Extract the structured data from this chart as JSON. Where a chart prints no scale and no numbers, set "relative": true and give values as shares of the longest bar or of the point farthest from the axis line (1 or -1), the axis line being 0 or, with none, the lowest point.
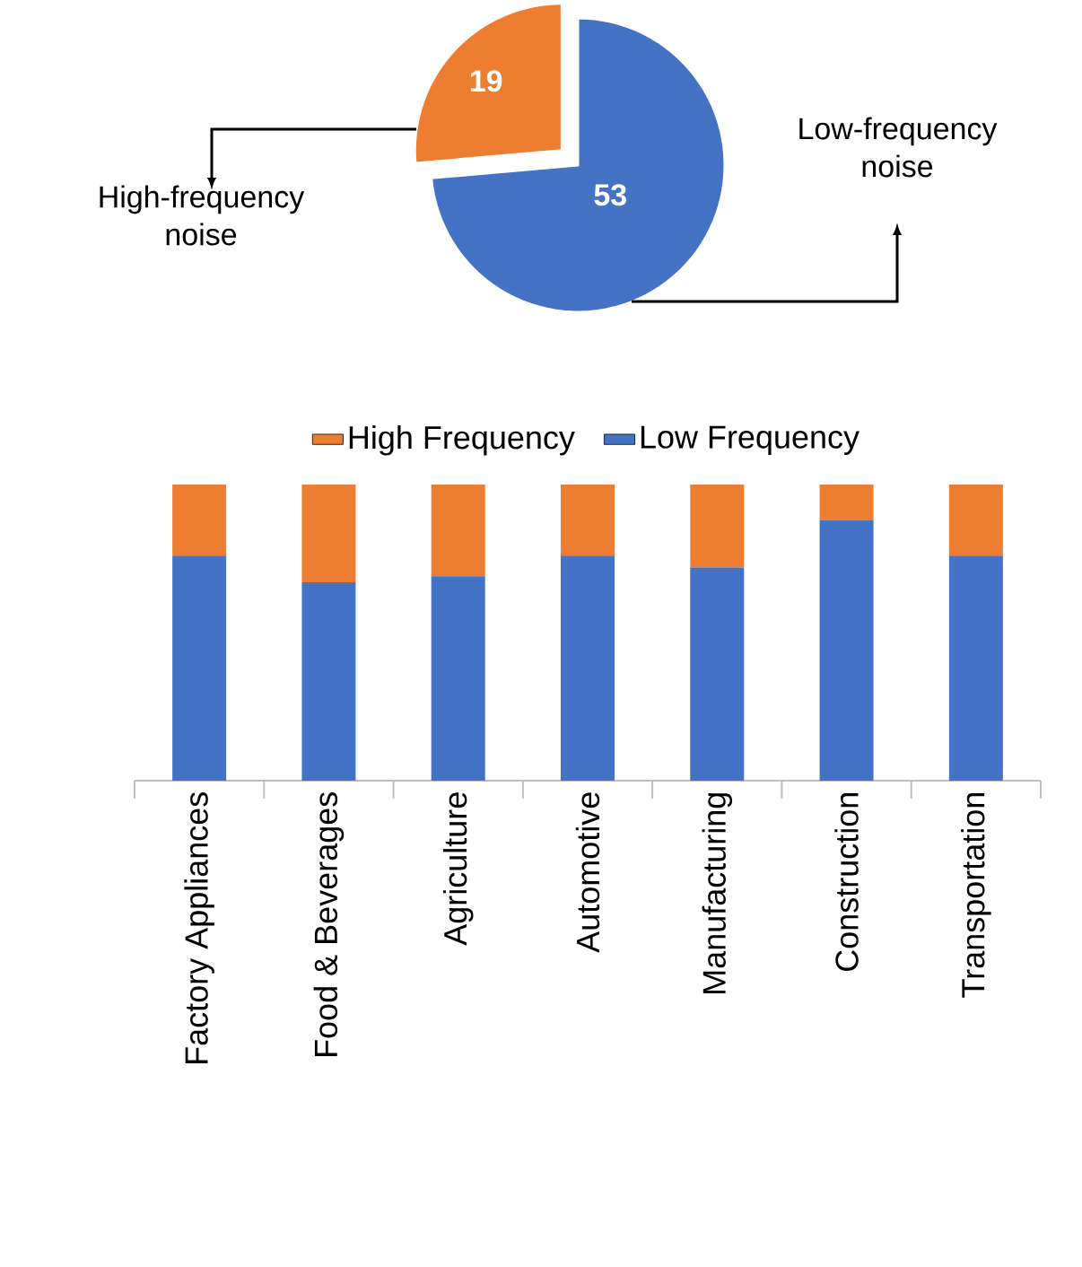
{
  "chart_data": [
    {
      "type": "pie",
      "categories": [
        "High-frequency noise",
        "Low-frequency noise"
      ],
      "values": [
        19,
        53
      ],
      "colors": [
        "#ed7d31",
        "#4472c4"
      ],
      "data_labels": true
    },
    {
      "type": "bar",
      "stacked": true,
      "relative": true,
      "legend": "top",
      "categories": [
        "Factory Appliances",
        "Food & Beverages",
        "Agriculture",
        "Automotive",
        "Manufacturing",
        "Construction",
        "Transportation"
      ],
      "series": [
        {
          "name": "Low Frequency",
          "color": "#4472c4",
          "values": [
            0.76,
            0.67,
            0.69,
            0.76,
            0.72,
            0.88,
            0.76
          ]
        },
        {
          "name": "High Frequency",
          "color": "#ed7d31",
          "values": [
            0.24,
            0.33,
            0.31,
            0.24,
            0.28,
            0.12,
            0.24
          ]
        }
      ]
    }
  ]
}
